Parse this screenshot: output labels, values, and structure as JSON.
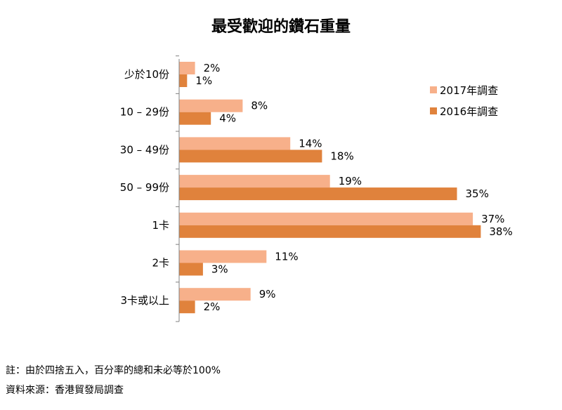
{
  "chart_data": {
    "type": "bar",
    "orientation": "horizontal",
    "title": "最受歡迎的鑽石重量",
    "categories": [
      "少於10份",
      "10 – 29份",
      "30 – 49份",
      "50 – 99份",
      "1卡",
      "2卡",
      "3卡或以上"
    ],
    "series": [
      {
        "name": "2017年調查",
        "values": [
          2,
          8,
          14,
          19,
          37,
          11,
          9
        ],
        "color": "#F7B08A"
      },
      {
        "name": "2016年調查",
        "values": [
          1,
          4,
          18,
          35,
          38,
          3,
          2
        ],
        "color": "#E0823C"
      }
    ],
    "value_suffix": "%",
    "xlim": [
      0,
      40
    ],
    "grid": false,
    "legend_position": "top-right"
  },
  "notes": {
    "footnote": "註：由於四捨五入，百分率的總和未必等於100%",
    "source": "資料來源：香港貿發局調查"
  }
}
